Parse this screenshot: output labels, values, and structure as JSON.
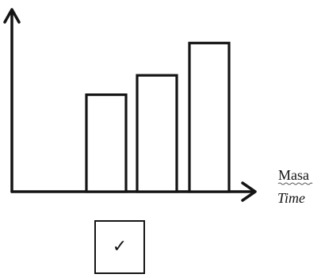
{
  "chart_data": {
    "type": "bar",
    "categories": [
      "",
      "",
      "",
      ""
    ],
    "values": [
      0,
      60,
      72,
      92
    ],
    "xlabel_lines": [
      "Masa",
      "Time"
    ],
    "ylabel": "",
    "ylim": [
      0,
      100
    ],
    "grid": false,
    "legend": "none"
  },
  "answer_box": {
    "mark": "✓",
    "state": "checked"
  }
}
